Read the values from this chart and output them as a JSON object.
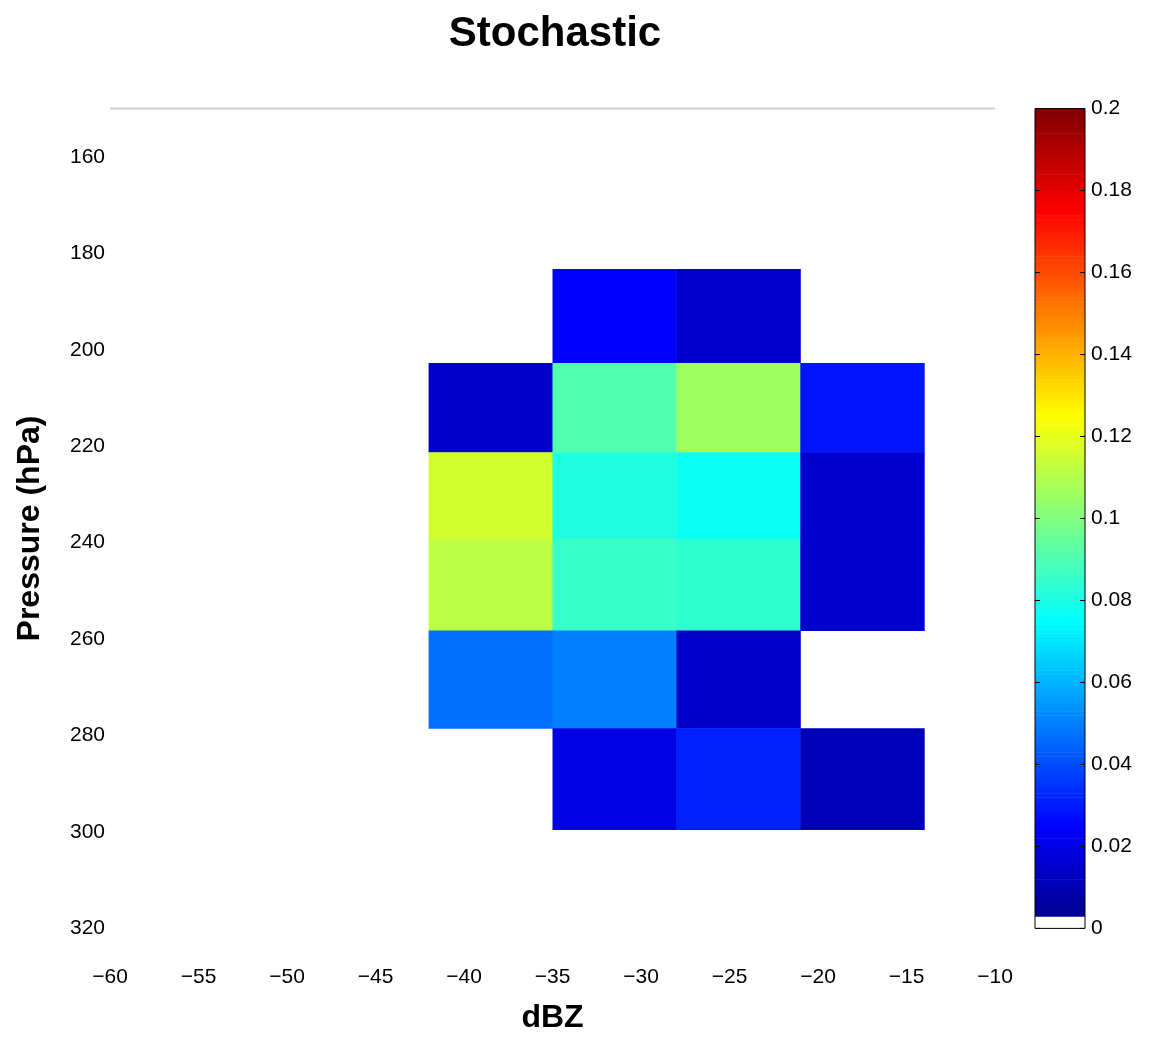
{
  "chart_data": {
    "type": "heatmap",
    "title": "Stochastic",
    "xlabel": "dBZ",
    "ylabel": "Pressure (hPa)",
    "x": [
      -38.5,
      -31.5,
      -24.5,
      -17.5
    ],
    "y": [
      193,
      212.5,
      230,
      248.5,
      268,
      289
    ],
    "cells": [
      [
        null,
        0.025,
        0.016,
        null
      ],
      [
        0.015,
        0.091,
        0.106,
        0.029
      ],
      [
        0.116,
        0.081,
        0.077,
        0.016
      ],
      [
        0.112,
        0.086,
        0.084,
        0.016
      ],
      [
        0.047,
        0.05,
        0.015,
        null
      ],
      [
        null,
        0.02,
        0.031,
        0.011
      ]
    ],
    "xlim": [
      -60,
      -10
    ],
    "xticks": [
      -60,
      -55,
      -50,
      -45,
      -40,
      -35,
      -30,
      -25,
      -20,
      -15,
      -10
    ],
    "ylim": [
      320,
      150
    ],
    "yticks": [
      160,
      180,
      200,
      220,
      240,
      260,
      280,
      300,
      320
    ],
    "clim": [
      0,
      0.2
    ],
    "cticks": [
      0,
      0.02,
      0.04,
      0.06,
      0.08,
      0.1,
      0.12,
      0.14,
      0.16,
      0.18,
      0.2
    ],
    "grid": false
  }
}
